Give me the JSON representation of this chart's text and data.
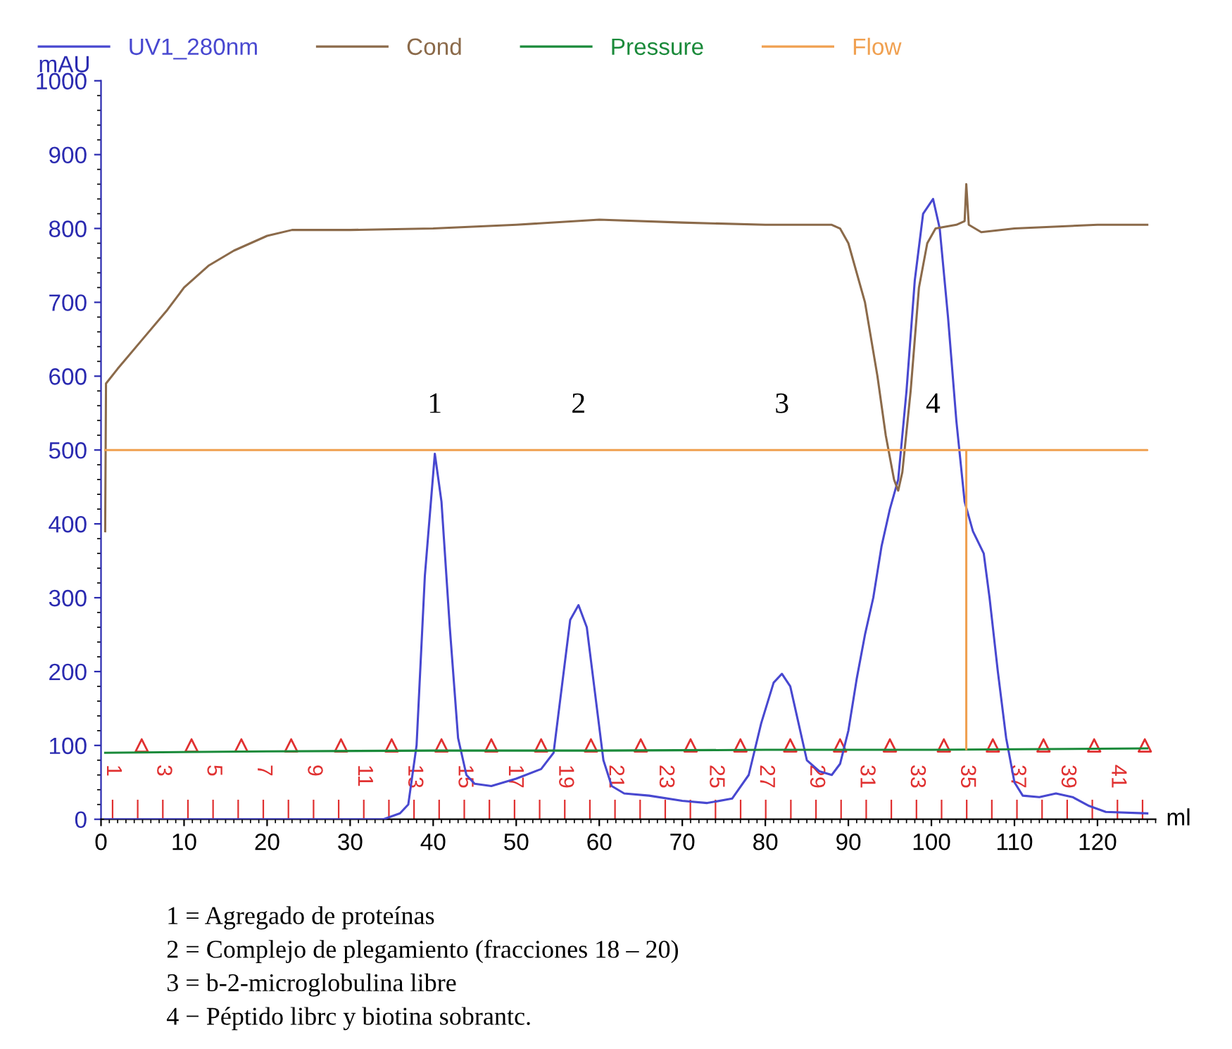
{
  "chart_data": {
    "type": "line",
    "xlabel": "ml",
    "ylabel": "mAU",
    "xlim": [
      0,
      127
    ],
    "ylim": [
      0,
      1000
    ],
    "xticks": [
      0,
      10,
      20,
      30,
      40,
      50,
      60,
      70,
      80,
      90,
      100,
      110,
      120
    ],
    "yticks": [
      0,
      100,
      200,
      300,
      400,
      500,
      600,
      700,
      800,
      900,
      1000
    ],
    "grid": false,
    "legend": "top",
    "series": [
      {
        "name": "UV1_280nm",
        "color": "#4848d0",
        "x": [
          0.5,
          34,
          36,
          37,
          38,
          39,
          40.2,
          41,
          42,
          43,
          44,
          45,
          47,
          50,
          53,
          54.5,
          55.5,
          56.5,
          57.5,
          58.5,
          59.5,
          60.5,
          61.5,
          63,
          66,
          70,
          73,
          76,
          78,
          79.5,
          81,
          82,
          83,
          84,
          85,
          86.5,
          88,
          89,
          90,
          91,
          92,
          93,
          94,
          95,
          96,
          97,
          98,
          99,
          100.2,
          101,
          102,
          103,
          104,
          105,
          106.3,
          107,
          108,
          109,
          110,
          111,
          113,
          115,
          117,
          119,
          121,
          126
        ],
        "values": [
          0,
          0,
          8,
          20,
          100,
          330,
          495,
          430,
          260,
          110,
          60,
          48,
          45,
          55,
          68,
          90,
          180,
          270,
          290,
          260,
          170,
          80,
          45,
          35,
          32,
          25,
          22,
          28,
          60,
          130,
          185,
          197,
          180,
          130,
          80,
          65,
          60,
          75,
          120,
          190,
          250,
          300,
          370,
          420,
          460,
          580,
          730,
          820,
          840,
          800,
          680,
          540,
          430,
          390,
          360,
          300,
          200,
          110,
          50,
          32,
          30,
          35,
          30,
          18,
          10,
          8
        ]
      },
      {
        "name": "Cond",
        "color": "#8b6a4a",
        "x": [
          0.5,
          0.6,
          2,
          5,
          8,
          10,
          13,
          16,
          20,
          23,
          30,
          40,
          50,
          60,
          70,
          80,
          88,
          89,
          90,
          92,
          93.5,
          94.5,
          95.5,
          96,
          96.5,
          97.5,
          98.5,
          99.5,
          100.5,
          103,
          104,
          104.2,
          104.5,
          106,
          110,
          120,
          126
        ],
        "values": [
          390,
          590,
          610,
          650,
          690,
          720,
          750,
          770,
          790,
          798,
          798,
          800,
          805,
          812,
          808,
          805,
          805,
          800,
          780,
          700,
          600,
          520,
          460,
          445,
          470,
          580,
          720,
          780,
          800,
          805,
          810,
          860,
          805,
          795,
          800,
          805,
          805
        ]
      },
      {
        "name": "Pressure",
        "color": "#1a8a3a",
        "x": [
          0.5,
          20,
          40,
          60,
          80,
          100,
          126
        ],
        "values": [
          90,
          92,
          93,
          93,
          94,
          94,
          96
        ]
      },
      {
        "name": "Flow",
        "color": "#f0a050",
        "x": [
          0.5,
          126,
          104.2,
          104.2
        ],
        "values": [
          500,
          500,
          500,
          95
        ]
      },
      {
        "type": "scatter",
        "marker": "triangle",
        "color": "#e03030",
        "x": [
          4.9,
          10.9,
          16.9,
          22.9,
          28.9,
          35,
          41,
          47,
          53,
          59,
          65,
          71,
          77,
          83,
          89,
          95,
          101.5,
          107.4,
          113.5,
          119.6,
          125.7
        ],
        "values": [
          100,
          100,
          100,
          100,
          100,
          100,
          100,
          100,
          100,
          100,
          100,
          100,
          100,
          100,
          100,
          100,
          100,
          100,
          100,
          100,
          100
        ]
      }
    ],
    "x2lim": [
      0.54,
      42.52
    ],
    "x2ticks": [
      1,
      {
        "value": 2,
        "label": null
      },
      3,
      {
        "value": 4,
        "label": null
      },
      5,
      {
        "value": 6,
        "label": null
      },
      7,
      {
        "value": 8,
        "label": null
      },
      9,
      {
        "value": 10,
        "label": null
      },
      11,
      {
        "value": 12,
        "label": null
      },
      13,
      {
        "value": 14,
        "label": null
      },
      15,
      {
        "value": 16,
        "label": null
      },
      17,
      {
        "value": 18,
        "label": null
      },
      19,
      {
        "value": 20,
        "label": null
      },
      21,
      {
        "value": 22,
        "label": null
      },
      23,
      {
        "value": 24,
        "label": null
      },
      25,
      {
        "value": 26,
        "label": null
      },
      27,
      {
        "value": 28,
        "label": null
      },
      29,
      {
        "value": 30,
        "label": null
      },
      31,
      {
        "value": 32,
        "label": null
      },
      33,
      {
        "value": 34,
        "label": null
      },
      35,
      {
        "value": 36,
        "label": null
      },
      37,
      {
        "value": 38,
        "label": null
      },
      39,
      {
        "value": 40,
        "label": null
      },
      41,
      {
        "value": 42,
        "label": null
      }
    ],
    "annotations": [
      "1",
      "2",
      "3",
      "4",
      "1 = Agregado de proteínas",
      "2 = Complejo de plegamiento (fracciones 18 – 20)",
      "3 = b-2-microglobulina libre",
      "4 − Péptido librc y biotina sobrantc."
    ]
  }
}
